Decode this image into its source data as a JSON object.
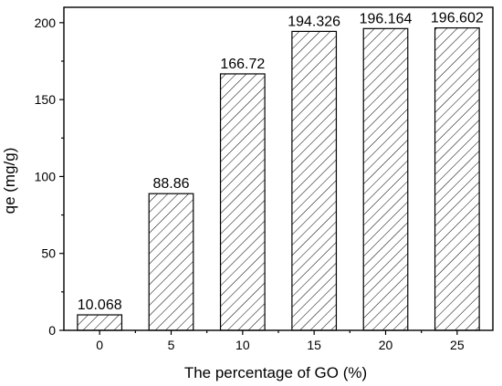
{
  "chart_data": {
    "type": "bar",
    "xlabel": "The percentage of GO (%)",
    "ylabel": "qe (mg/g)",
    "categories": [
      "0",
      "5",
      "10",
      "15",
      "20",
      "25"
    ],
    "values": [
      10.068,
      88.86,
      166.72,
      194.326,
      196.164,
      196.602
    ],
    "data_labels": [
      "10.068",
      "88.86",
      "166.72",
      "194.326",
      "196.164",
      "196.602"
    ],
    "ylim": [
      0,
      210
    ],
    "yticks": [
      "0",
      "50",
      "100",
      "150",
      "200"
    ],
    "ytick_values": [
      0,
      50,
      100,
      150,
      200
    ],
    "bar_fill": "diagonal hatch",
    "colors": {
      "stroke": "#000000",
      "background": "#ffffff"
    },
    "grid": false,
    "legend": "none"
  }
}
